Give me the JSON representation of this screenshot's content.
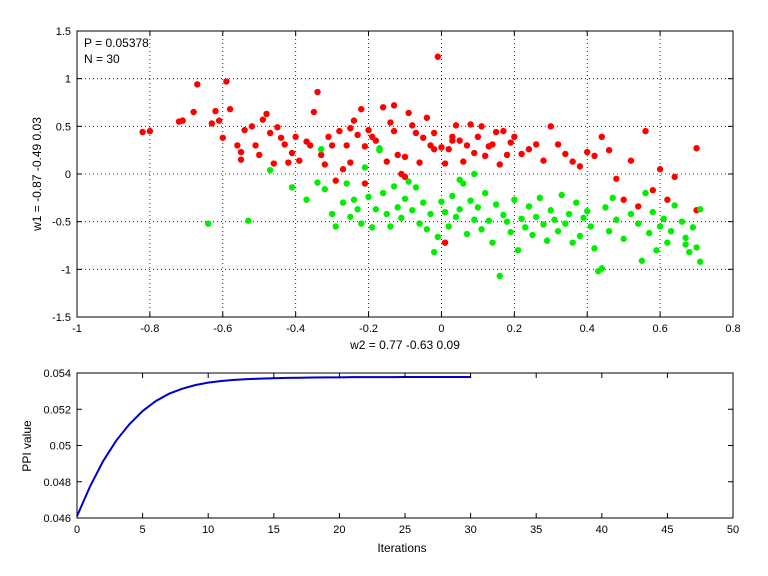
{
  "chart_data": [
    {
      "type": "scatter",
      "annotations": [
        "P = 0.05378",
        "N = 30"
      ],
      "xlabel": "w2 = 0.77  -0.63  0.09",
      "ylabel": "w1 = -0.87  -0.49  0.03",
      "xlim": [
        -1,
        0.8
      ],
      "ylim": [
        -1.5,
        1.5
      ],
      "xticks": [
        -1,
        -0.8,
        -0.6,
        -0.4,
        -0.2,
        0,
        0.2,
        0.4,
        0.6,
        0.8
      ],
      "yticks": [
        -1.5,
        -1,
        -0.5,
        0,
        0.5,
        1,
        1.5
      ],
      "grid": true,
      "series": [
        {
          "color": "#ff0000",
          "points": [
            [
              -0.82,
              0.44
            ],
            [
              -0.8,
              0.45
            ],
            [
              -0.72,
              0.55
            ],
            [
              -0.71,
              0.56
            ],
            [
              -0.68,
              0.65
            ],
            [
              -0.67,
              0.94
            ],
            [
              -0.63,
              0.53
            ],
            [
              -0.62,
              0.66
            ],
            [
              -0.61,
              0.56
            ],
            [
              -0.6,
              0.38
            ],
            [
              -0.59,
              0.97
            ],
            [
              -0.58,
              0.68
            ],
            [
              -0.56,
              0.3
            ],
            [
              -0.55,
              0.23
            ],
            [
              -0.55,
              0.15
            ],
            [
              -0.54,
              0.46
            ],
            [
              -0.52,
              0.5
            ],
            [
              -0.51,
              0.3
            ],
            [
              -0.5,
              0.2
            ],
            [
              -0.49,
              0.57
            ],
            [
              -0.48,
              0.63
            ],
            [
              -0.47,
              0.43
            ],
            [
              -0.46,
              0.11
            ],
            [
              -0.45,
              0.49
            ],
            [
              -0.44,
              0.38
            ],
            [
              -0.43,
              0.31
            ],
            [
              -0.42,
              0.12
            ],
            [
              -0.41,
              0.22
            ],
            [
              -0.4,
              0.39
            ],
            [
              -0.39,
              0.14
            ],
            [
              -0.37,
              0.34
            ],
            [
              -0.36,
              0.3
            ],
            [
              -0.35,
              0.65
            ],
            [
              -0.34,
              0.86
            ],
            [
              -0.33,
              0.2
            ],
            [
              -0.32,
              0.1
            ],
            [
              -0.31,
              0.39
            ],
            [
              -0.3,
              0.3
            ],
            [
              -0.29,
              -0.07
            ],
            [
              -0.28,
              0.45
            ],
            [
              -0.27,
              0.05
            ],
            [
              -0.26,
              0.3
            ],
            [
              -0.25,
              0.12
            ],
            [
              -0.24,
              0.56
            ],
            [
              -0.23,
              0.41
            ],
            [
              -0.22,
              0.68
            ],
            [
              -0.21,
              0.29
            ],
            [
              -0.2,
              0.46
            ],
            [
              -0.19,
              0.39
            ],
            [
              -0.18,
              0.35
            ],
            [
              -0.17,
              0.25
            ],
            [
              -0.16,
              0.7
            ],
            [
              -0.15,
              0.13
            ],
            [
              -0.14,
              0.54
            ],
            [
              -0.13,
              0.45
            ],
            [
              -0.12,
              0.2
            ],
            [
              -0.11,
              0.0
            ],
            [
              -0.1,
              0.18
            ],
            [
              -0.09,
              0.64
            ],
            [
              -0.08,
              0.51
            ],
            [
              -0.07,
              0.43
            ],
            [
              -0.06,
              0.12
            ],
            [
              -0.05,
              0.38
            ],
            [
              -0.04,
              0.59
            ],
            [
              -0.03,
              0.3
            ],
            [
              -0.02,
              0.43
            ],
            [
              -0.01,
              1.23
            ],
            [
              0.0,
              0.28
            ],
            [
              0.01,
              0.11
            ],
            [
              0.02,
              0.26
            ],
            [
              0.03,
              0.39
            ],
            [
              0.04,
              0.51
            ],
            [
              0.05,
              0.35
            ],
            [
              0.06,
              0.13
            ],
            [
              0.07,
              0.3
            ],
            [
              0.08,
              0.52
            ],
            [
              0.09,
              0.22
            ],
            [
              0.1,
              0.39
            ],
            [
              0.11,
              0.5
            ],
            [
              0.12,
              0.19
            ],
            [
              0.13,
              0.29
            ],
            [
              0.14,
              0.31
            ],
            [
              0.15,
              0.44
            ],
            [
              0.16,
              0.1
            ],
            [
              0.17,
              0.45
            ],
            [
              0.18,
              0.2
            ],
            [
              0.19,
              0.33
            ],
            [
              0.2,
              0.39
            ],
            [
              0.22,
              0.21
            ],
            [
              0.24,
              0.26
            ],
            [
              0.26,
              0.31
            ],
            [
              0.28,
              0.14
            ],
            [
              0.3,
              0.5
            ],
            [
              0.32,
              0.31
            ],
            [
              0.34,
              0.21
            ],
            [
              0.36,
              0.13
            ],
            [
              0.38,
              0.08
            ],
            [
              0.4,
              0.23
            ],
            [
              0.42,
              0.19
            ],
            [
              0.44,
              0.39
            ],
            [
              0.46,
              0.25
            ],
            [
              0.48,
              -0.05
            ],
            [
              0.5,
              -0.27
            ],
            [
              0.52,
              0.14
            ],
            [
              0.54,
              -0.34
            ],
            [
              0.56,
              0.45
            ],
            [
              0.58,
              -0.17
            ],
            [
              0.6,
              0.05
            ],
            [
              0.62,
              -0.27
            ],
            [
              0.64,
              -0.03
            ],
            [
              0.7,
              0.27
            ],
            [
              0.7,
              -0.38
            ],
            [
              -0.25,
              0.48
            ],
            [
              -0.13,
              0.72
            ],
            [
              -0.02,
              0.26
            ],
            [
              0.01,
              -0.72
            ],
            [
              0.03,
              0.35
            ],
            [
              -0.1,
              -0.03
            ],
            [
              -0.21,
              -0.1
            ]
          ]
        },
        {
          "color": "#00ee00",
          "points": [
            [
              -0.64,
              -0.52
            ],
            [
              -0.53,
              -0.49
            ],
            [
              -0.47,
              0.04
            ],
            [
              -0.41,
              -0.14
            ],
            [
              -0.37,
              -0.27
            ],
            [
              -0.34,
              -0.09
            ],
            [
              -0.32,
              -0.16
            ],
            [
              -0.3,
              -0.42
            ],
            [
              -0.29,
              -0.55
            ],
            [
              -0.27,
              -0.3
            ],
            [
              -0.26,
              -0.1
            ],
            [
              -0.25,
              -0.45
            ],
            [
              -0.24,
              -0.27
            ],
            [
              -0.23,
              -0.37
            ],
            [
              -0.22,
              -0.52
            ],
            [
              -0.21,
              0.07
            ],
            [
              -0.2,
              -0.24
            ],
            [
              -0.19,
              -0.56
            ],
            [
              -0.18,
              -0.37
            ],
            [
              -0.17,
              0.25
            ],
            [
              -0.16,
              -0.2
            ],
            [
              -0.15,
              -0.42
            ],
            [
              -0.14,
              -0.55
            ],
            [
              -0.13,
              -0.13
            ],
            [
              -0.12,
              -0.35
            ],
            [
              -0.11,
              -0.46
            ],
            [
              -0.1,
              -0.26
            ],
            [
              -0.09,
              -0.08
            ],
            [
              -0.08,
              -0.38
            ],
            [
              -0.07,
              -0.14
            ],
            [
              -0.06,
              -0.52
            ],
            [
              -0.05,
              -0.3
            ],
            [
              -0.04,
              -0.58
            ],
            [
              -0.03,
              -0.42
            ],
            [
              -0.02,
              -0.82
            ],
            [
              -0.01,
              -0.66
            ],
            [
              0.0,
              -0.29
            ],
            [
              0.01,
              -0.4
            ],
            [
              0.02,
              -0.55
            ],
            [
              0.03,
              -0.23
            ],
            [
              0.04,
              -0.45
            ],
            [
              0.05,
              -0.37
            ],
            [
              0.06,
              -0.1
            ],
            [
              0.07,
              -0.63
            ],
            [
              0.08,
              -0.28
            ],
            [
              0.09,
              -0.48
            ],
            [
              0.1,
              -0.35
            ],
            [
              0.11,
              -0.58
            ],
            [
              0.12,
              -0.2
            ],
            [
              0.13,
              -0.49
            ],
            [
              0.14,
              -0.72
            ],
            [
              0.15,
              -0.32
            ],
            [
              0.16,
              -1.07
            ],
            [
              0.17,
              -0.43
            ],
            [
              0.18,
              -0.5
            ],
            [
              0.19,
              -0.61
            ],
            [
              0.2,
              -0.27
            ],
            [
              0.21,
              -0.8
            ],
            [
              0.22,
              -0.47
            ],
            [
              0.23,
              -0.56
            ],
            [
              0.24,
              -0.34
            ],
            [
              0.25,
              -0.64
            ],
            [
              0.26,
              -0.45
            ],
            [
              0.27,
              -0.25
            ],
            [
              0.28,
              -0.53
            ],
            [
              0.29,
              -0.7
            ],
            [
              0.3,
              -0.38
            ],
            [
              0.31,
              -0.48
            ],
            [
              0.32,
              -0.6
            ],
            [
              0.33,
              -0.22
            ],
            [
              0.34,
              -0.52
            ],
            [
              0.35,
              -0.42
            ],
            [
              0.36,
              -0.72
            ],
            [
              0.37,
              -0.3
            ],
            [
              0.38,
              -0.65
            ],
            [
              0.39,
              -0.46
            ],
            [
              0.4,
              -0.39
            ],
            [
              0.41,
              -0.55
            ],
            [
              0.42,
              -0.78
            ],
            [
              0.43,
              -1.02
            ],
            [
              0.44,
              -0.99
            ],
            [
              0.45,
              -0.35
            ],
            [
              0.46,
              -0.6
            ],
            [
              0.47,
              -0.25
            ],
            [
              0.48,
              -0.48
            ],
            [
              0.5,
              -0.68
            ],
            [
              0.52,
              -0.42
            ],
            [
              0.54,
              -0.52
            ],
            [
              0.55,
              -0.91
            ],
            [
              0.56,
              -0.2
            ],
            [
              0.57,
              -0.62
            ],
            [
              0.58,
              -0.4
            ],
            [
              0.59,
              -0.8
            ],
            [
              0.6,
              -0.55
            ],
            [
              0.61,
              -0.47
            ],
            [
              0.62,
              -0.72
            ],
            [
              0.63,
              -0.6
            ],
            [
              0.64,
              -0.33
            ],
            [
              0.66,
              -0.5
            ],
            [
              0.67,
              -0.67
            ],
            [
              0.68,
              -0.82
            ],
            [
              0.69,
              -0.56
            ],
            [
              0.7,
              -0.77
            ],
            [
              0.71,
              -0.92
            ],
            [
              0.71,
              -0.37
            ],
            [
              0.67,
              -0.74
            ],
            [
              -0.33,
              0.26
            ],
            [
              -0.17,
              0.27
            ],
            [
              0.05,
              -0.06
            ],
            [
              0.09,
              0.0
            ]
          ]
        }
      ]
    },
    {
      "type": "line",
      "xlabel": "Iterations",
      "ylabel": "PPI value",
      "xlim": [
        0,
        50
      ],
      "ylim": [
        0.046,
        0.054
      ],
      "xticks": [
        0,
        5,
        10,
        15,
        20,
        25,
        30,
        35,
        40,
        45,
        50
      ],
      "yticks": [
        0.046,
        0.048,
        0.05,
        0.052,
        0.054
      ],
      "grid": false,
      "series": [
        {
          "color": "#0000cc",
          "x": [
            0,
            1,
            2,
            3,
            4,
            5,
            6,
            7,
            8,
            9,
            10,
            11,
            12,
            13,
            14,
            15,
            16,
            17,
            18,
            19,
            20,
            21,
            22,
            23,
            24,
            25,
            26,
            27,
            28,
            29,
            30
          ],
          "values": [
            0.0461,
            0.04775,
            0.04915,
            0.05028,
            0.05118,
            0.0519,
            0.05245,
            0.05285,
            0.05313,
            0.05333,
            0.05347,
            0.05356,
            0.05362,
            0.05366,
            0.05369,
            0.05371,
            0.05373,
            0.05374,
            0.05375,
            0.05376,
            0.05376,
            0.05377,
            0.05377,
            0.05377,
            0.05377,
            0.05378,
            0.05378,
            0.05378,
            0.05378,
            0.05378,
            0.05378
          ]
        }
      ]
    }
  ]
}
